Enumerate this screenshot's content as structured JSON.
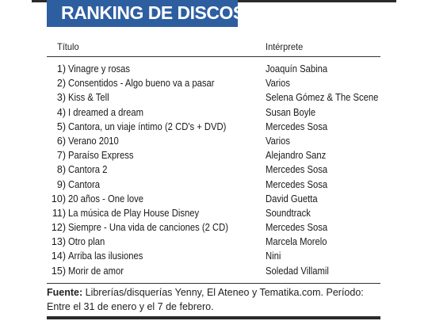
{
  "header": {
    "title": "RANKING DE DISCOS",
    "color": "#2d5fa0"
  },
  "columns": {
    "title": "Título",
    "artist": "Intérprete"
  },
  "rows": [
    {
      "num": "1)",
      "title": "Vinagre y rosas",
      "extra": "",
      "artist": "Joaquín Sabina"
    },
    {
      "num": "2)",
      "title": "Consentidos - Algo bueno va a pasar",
      "extra": "",
      "artist": "Varios"
    },
    {
      "num": "3)",
      "title": "Kiss & Tell",
      "extra": "",
      "artist": "Selena Gómez & The Scene"
    },
    {
      "num": "4)",
      "title": "I dreamed a dream",
      "extra": "",
      "artist": "Susan Boyle"
    },
    {
      "num": "5)",
      "title": "Cantora, un viaje íntimo",
      "extra": " (2 CD's + DVD)",
      "artist": "Mercedes Sosa"
    },
    {
      "num": "6)",
      "title": "Verano 2010",
      "extra": "",
      "artist": "Varios"
    },
    {
      "num": "7)",
      "title": "Paraíso Express",
      "extra": "",
      "artist": "Alejandro Sanz"
    },
    {
      "num": "8)",
      "title": "Cantora 2",
      "extra": "",
      "artist": "Mercedes Sosa"
    },
    {
      "num": "9)",
      "title": "Cantora",
      "extra": "",
      "artist": "Mercedes Sosa"
    },
    {
      "num": "10)",
      "title": "20 años - One love",
      "extra": "",
      "artist": "David Guetta"
    },
    {
      "num": "11)",
      "title": "La música de Play House Disney",
      "extra": "",
      "artist": "Soundtrack"
    },
    {
      "num": "12)",
      "title": "Siempre - Una vida de canciones",
      "extra": " (2 CD)",
      "artist": "Mercedes Sosa"
    },
    {
      "num": "13)",
      "title": "Otro plan",
      "extra": "",
      "artist": "Marcela Morelo"
    },
    {
      "num": "14)",
      "title": "Arriba las ilusiones",
      "extra": "",
      "artist": "Nini"
    },
    {
      "num": "15)",
      "title": "Morir de amor",
      "extra": "",
      "artist": "Soledad Villamil"
    }
  ],
  "source": {
    "label": "Fuente:",
    "text": " Librerías/disquerías Yenny, El Ateneo y Tematika.com. Período: Entre el 31 de enero y el 7 de febrero."
  }
}
